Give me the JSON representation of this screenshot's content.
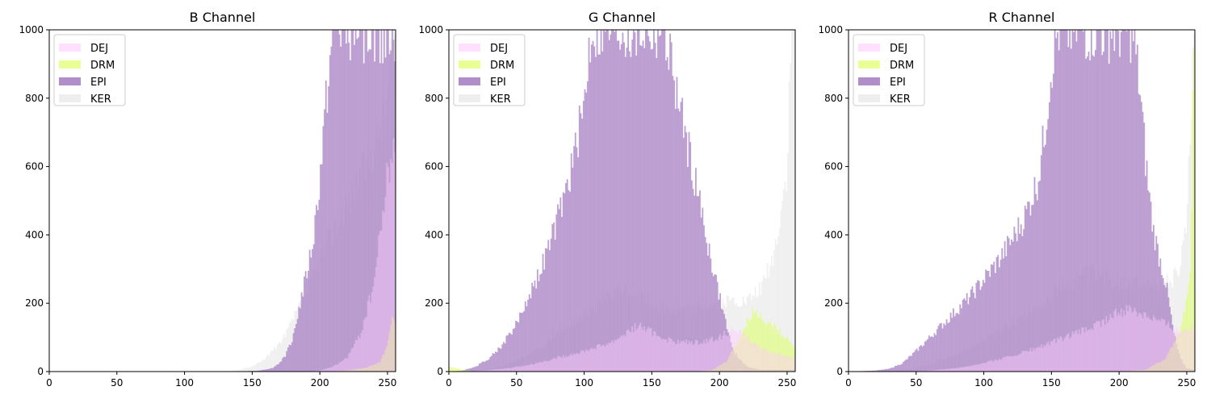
{
  "chart_data": {
    "type": "histogram",
    "xlim": [
      0,
      256
    ],
    "ylim": [
      0,
      1000
    ],
    "x_ticks": [
      0,
      50,
      100,
      150,
      200,
      250
    ],
    "y_ticks": [
      0,
      200,
      400,
      600,
      800,
      1000
    ],
    "legend_placement": "upper-left",
    "grid": false,
    "series": [
      {
        "name": "DEJ",
        "color": "#ffccff"
      },
      {
        "name": "DRM",
        "color": "#ddff66"
      },
      {
        "name": "EPI",
        "color": "#a882c4"
      },
      {
        "name": "KER",
        "color": "#e8e8e8"
      }
    ],
    "panels": [
      {
        "title": "B Channel",
        "series": {
          "DEJ": [
            [
              0,
              0
            ],
            [
              190,
              0
            ],
            [
              200,
              3
            ],
            [
              210,
              15
            ],
            [
              220,
              40
            ],
            [
              230,
              110
            ],
            [
              240,
              260
            ],
            [
              245,
              420
            ],
            [
              250,
              580
            ],
            [
              253,
              640
            ],
            [
              256,
              640
            ]
          ],
          "DRM": [
            [
              0,
              0
            ],
            [
              100,
              0
            ],
            [
              140,
              0
            ],
            [
              200,
              0
            ],
            [
              220,
              3
            ],
            [
              235,
              12
            ],
            [
              245,
              30
            ],
            [
              250,
              80
            ],
            [
              253,
              150
            ],
            [
              256,
              150
            ]
          ],
          "EPI": [
            [
              0,
              0
            ],
            [
              140,
              0
            ],
            [
              155,
              3
            ],
            [
              165,
              10
            ],
            [
              170,
              25
            ],
            [
              175,
              50
            ],
            [
              180,
              100
            ],
            [
              185,
              190
            ],
            [
              190,
              280
            ],
            [
              195,
              380
            ],
            [
              200,
              560
            ],
            [
              205,
              800
            ],
            [
              210,
              1000
            ],
            [
              256,
              1000
            ]
          ],
          "KER": [
            [
              0,
              0
            ],
            [
              130,
              0
            ],
            [
              140,
              4
            ],
            [
              150,
              15
            ],
            [
              160,
              40
            ],
            [
              170,
              80
            ],
            [
              180,
              150
            ],
            [
              190,
              230
            ],
            [
              200,
              330
            ],
            [
              210,
              410
            ],
            [
              220,
              490
            ],
            [
              230,
              570
            ],
            [
              240,
              650
            ],
            [
              250,
              800
            ],
            [
              253,
              1000
            ],
            [
              256,
              1000
            ]
          ]
        }
      },
      {
        "title": "G Channel",
        "series": {
          "DEJ": [
            [
              0,
              0
            ],
            [
              20,
              2
            ],
            [
              40,
              8
            ],
            [
              60,
              20
            ],
            [
              80,
              40
            ],
            [
              100,
              60
            ],
            [
              120,
              85
            ],
            [
              140,
              135
            ],
            [
              150,
              115
            ],
            [
              160,
              95
            ],
            [
              170,
              85
            ],
            [
              180,
              85
            ],
            [
              190,
              90
            ],
            [
              200,
              100
            ],
            [
              210,
              125
            ],
            [
              220,
              100
            ],
            [
              230,
              70
            ],
            [
              240,
              55
            ],
            [
              250,
              45
            ],
            [
              256,
              40
            ]
          ],
          "DRM": [
            [
              0,
              15
            ],
            [
              10,
              5
            ],
            [
              20,
              0
            ],
            [
              60,
              0
            ],
            [
              100,
              0
            ],
            [
              180,
              0
            ],
            [
              195,
              5
            ],
            [
              205,
              30
            ],
            [
              215,
              100
            ],
            [
              225,
              180
            ],
            [
              230,
              165
            ],
            [
              240,
              130
            ],
            [
              250,
              100
            ],
            [
              256,
              70
            ]
          ],
          "EPI": [
            [
              0,
              0
            ],
            [
              10,
              3
            ],
            [
              20,
              15
            ],
            [
              30,
              40
            ],
            [
              40,
              80
            ],
            [
              50,
              140
            ],
            [
              60,
              230
            ],
            [
              70,
              320
            ],
            [
              80,
              440
            ],
            [
              90,
              580
            ],
            [
              100,
              780
            ],
            [
              105,
              1000
            ],
            [
              160,
              1000
            ],
            [
              165,
              890
            ],
            [
              170,
              780
            ],
            [
              180,
              600
            ],
            [
              190,
              400
            ],
            [
              200,
              220
            ],
            [
              210,
              60
            ],
            [
              220,
              15
            ],
            [
              230,
              5
            ],
            [
              256,
              5
            ]
          ],
          "KER": [
            [
              0,
              0
            ],
            [
              20,
              3
            ],
            [
              40,
              15
            ],
            [
              60,
              50
            ],
            [
              80,
              110
            ],
            [
              100,
              170
            ],
            [
              110,
              195
            ],
            [
              120,
              220
            ],
            [
              130,
              235
            ],
            [
              140,
              225
            ],
            [
              150,
              200
            ],
            [
              160,
              185
            ],
            [
              170,
              180
            ],
            [
              180,
              185
            ],
            [
              190,
              190
            ],
            [
              200,
              200
            ],
            [
              210,
              205
            ],
            [
              220,
              200
            ],
            [
              230,
              240
            ],
            [
              240,
              330
            ],
            [
              250,
              580
            ],
            [
              253,
              1000
            ],
            [
              256,
              1000
            ]
          ]
        }
      },
      {
        "title": "R Channel",
        "series": {
          "DEJ": [
            [
              0,
              0
            ],
            [
              40,
              0
            ],
            [
              60,
              3
            ],
            [
              80,
              10
            ],
            [
              100,
              25
            ],
            [
              120,
              45
            ],
            [
              140,
              70
            ],
            [
              160,
              100
            ],
            [
              180,
              130
            ],
            [
              190,
              150
            ],
            [
              200,
              175
            ],
            [
              210,
              180
            ],
            [
              220,
              170
            ],
            [
              230,
              150
            ],
            [
              240,
              130
            ],
            [
              245,
              120
            ],
            [
              250,
              130
            ],
            [
              256,
              130
            ]
          ],
          "DRM": [
            [
              0,
              0
            ],
            [
              200,
              0
            ],
            [
              220,
              5
            ],
            [
              235,
              40
            ],
            [
              245,
              120
            ],
            [
              250,
              220
            ],
            [
              253,
              320
            ],
            [
              255,
              1000
            ],
            [
              256,
              1000
            ]
          ],
          "EPI": [
            [
              0,
              0
            ],
            [
              20,
              3
            ],
            [
              30,
              8
            ],
            [
              40,
              25
            ],
            [
              50,
              60
            ],
            [
              60,
              100
            ],
            [
              70,
              140
            ],
            [
              80,
              180
            ],
            [
              90,
              220
            ],
            [
              100,
              270
            ],
            [
              110,
              320
            ],
            [
              120,
              380
            ],
            [
              130,
              450
            ],
            [
              140,
              560
            ],
            [
              145,
              700
            ],
            [
              150,
              900
            ],
            [
              155,
              1000
            ],
            [
              210,
              1000
            ],
            [
              215,
              840
            ],
            [
              220,
              600
            ],
            [
              225,
              420
            ],
            [
              230,
              330
            ],
            [
              235,
              250
            ],
            [
              240,
              120
            ],
            [
              245,
              40
            ],
            [
              250,
              10
            ],
            [
              256,
              5
            ]
          ],
          "KER": [
            [
              0,
              0
            ],
            [
              40,
              5
            ],
            [
              60,
              20
            ],
            [
              80,
              50
            ],
            [
              100,
              90
            ],
            [
              120,
              140
            ],
            [
              140,
              190
            ],
            [
              150,
              220
            ],
            [
              160,
              255
            ],
            [
              170,
              280
            ],
            [
              180,
              285
            ],
            [
              190,
              275
            ],
            [
              200,
              265
            ],
            [
              210,
              255
            ],
            [
              220,
              245
            ],
            [
              230,
              250
            ],
            [
              240,
              270
            ],
            [
              245,
              300
            ],
            [
              250,
              450
            ],
            [
              253,
              700
            ],
            [
              255,
              1000
            ],
            [
              256,
              1000
            ]
          ]
        }
      }
    ]
  }
}
